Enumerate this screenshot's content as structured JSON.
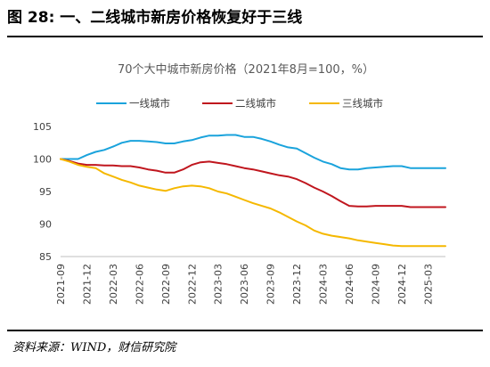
{
  "figure": {
    "label": "图 28:",
    "caption": "一、二线城市新房价格恢复好于三线"
  },
  "source": "资料来源：WIND，财信研究院",
  "colors": {
    "tier1": "#1AA3DC",
    "tier2": "#C0161E",
    "tier3": "#F5B800",
    "axis": "#BFBFBF"
  },
  "chart_data": {
    "type": "line",
    "title": "70个大中城市新房价格（2021年8月=100，%）",
    "ylim": [
      85,
      105
    ],
    "yticks": [
      85,
      90,
      95,
      100,
      105
    ],
    "grid": false,
    "legend_position": "top",
    "x": [
      "2021-09",
      "2021-10",
      "2021-11",
      "2021-12",
      "2022-01",
      "2022-02",
      "2022-03",
      "2022-04",
      "2022-05",
      "2022-06",
      "2022-07",
      "2022-08",
      "2022-09",
      "2022-10",
      "2022-11",
      "2022-12",
      "2023-01",
      "2023-02",
      "2023-03",
      "2023-04",
      "2023-05",
      "2023-06",
      "2023-07",
      "2023-08",
      "2023-09",
      "2023-10",
      "2023-11",
      "2023-12",
      "2024-01",
      "2024-02",
      "2024-03",
      "2024-04",
      "2024-05",
      "2024-06",
      "2024-07",
      "2024-08",
      "2024-09",
      "2024-10",
      "2024-11",
      "2024-12",
      "2025-01",
      "2025-02",
      "2025-03",
      "2025-04",
      "2025-05"
    ],
    "xtick_labels": [
      "2021-09",
      "2021-12",
      "2022-03",
      "2022-06",
      "2022-09",
      "2022-12",
      "2023-03",
      "2023-06",
      "2023-09",
      "2023-12",
      "2024-03",
      "2024-06",
      "2024-09",
      "2024-12",
      "2025-03"
    ],
    "series": [
      {
        "name": "一线城市",
        "color_key": "tier1",
        "values": [
          100.0,
          100.0,
          100.0,
          100.6,
          101.1,
          101.4,
          101.9,
          102.5,
          102.8,
          102.8,
          102.7,
          102.6,
          102.4,
          102.4,
          102.7,
          102.9,
          103.3,
          103.6,
          103.6,
          103.7,
          103.7,
          103.4,
          103.4,
          103.1,
          102.7,
          102.2,
          101.8,
          101.6,
          100.9,
          100.2,
          99.6,
          99.2,
          98.6,
          98.4,
          98.4,
          98.6,
          98.7,
          98.8,
          98.9,
          98.9,
          98.6,
          98.6,
          98.6,
          98.6,
          98.6
        ]
      },
      {
        "name": "二线城市",
        "color_key": "tier2",
        "values": [
          100.0,
          99.7,
          99.3,
          99.1,
          99.1,
          99.0,
          99.0,
          98.9,
          98.9,
          98.7,
          98.4,
          98.2,
          97.9,
          97.9,
          98.4,
          99.1,
          99.5,
          99.6,
          99.4,
          99.2,
          98.9,
          98.6,
          98.4,
          98.1,
          97.8,
          97.5,
          97.3,
          96.9,
          96.3,
          95.6,
          95.0,
          94.3,
          93.5,
          92.8,
          92.7,
          92.7,
          92.8,
          92.8,
          92.8,
          92.8,
          92.6,
          92.6,
          92.6,
          92.6,
          92.6
        ]
      },
      {
        "name": "三线城市",
        "color_key": "tier3",
        "values": [
          100.0,
          99.6,
          99.1,
          98.8,
          98.6,
          97.8,
          97.3,
          96.8,
          96.4,
          95.9,
          95.6,
          95.3,
          95.1,
          95.5,
          95.8,
          95.9,
          95.8,
          95.5,
          95.0,
          94.7,
          94.2,
          93.7,
          93.2,
          92.8,
          92.4,
          91.8,
          91.1,
          90.4,
          89.8,
          89.0,
          88.5,
          88.2,
          88.0,
          87.8,
          87.5,
          87.3,
          87.1,
          86.9,
          86.7,
          86.6,
          86.6,
          86.6,
          86.6,
          86.6,
          86.6
        ]
      }
    ]
  }
}
